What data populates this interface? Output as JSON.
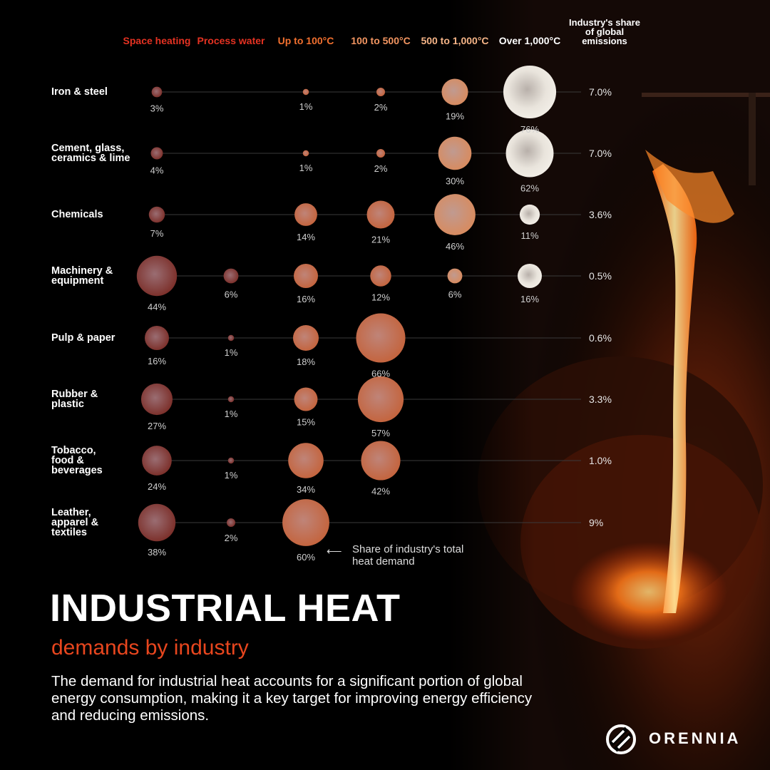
{
  "chart_data": {
    "type": "bubble-matrix",
    "title": "INDUSTRIAL HEAT",
    "subtitle": "demands by industry",
    "description": "The demand for industrial heat accounts for a significant portion of global energy consumption, making it a key target for improving energy efficiency and reducing emissions.",
    "columns": [
      {
        "key": "space",
        "label": "Space heating",
        "color": "#e53222"
      },
      {
        "key": "process",
        "label": "Process water",
        "color": "#e53222"
      },
      {
        "key": "up100",
        "label": "Up to 100°C",
        "color": "#f2702f"
      },
      {
        "key": "100to500",
        "label": "100 to 500°C",
        "color": "#f29561"
      },
      {
        "key": "500to1000",
        "label": "500 to 1,000°C",
        "color": "#f5b487"
      },
      {
        "key": "over1000",
        "label": "Over 1,000°C",
        "color": "#ffffff"
      }
    ],
    "share_column_label": "Industry's share of global emissions",
    "rows": [
      {
        "industry": "Iron & steel",
        "values": [
          3,
          null,
          1,
          2,
          19,
          76
        ],
        "labels": [
          "3%",
          "",
          "1%",
          "2%",
          "19%",
          "76%"
        ],
        "emissions_share": "7.0%"
      },
      {
        "industry": "Cement, glass, ceramics & lime",
        "values": [
          4,
          null,
          1,
          2,
          30,
          62
        ],
        "labels": [
          "4%",
          "",
          "1%",
          "2%",
          "30%",
          "62%"
        ],
        "emissions_share": "7.0%"
      },
      {
        "industry": "Chemicals",
        "values": [
          7,
          null,
          14,
          21,
          46,
          11
        ],
        "labels": [
          "7%",
          "",
          "14%",
          "21%",
          "46%",
          "11%"
        ],
        "emissions_share": "3.6%"
      },
      {
        "industry": "Machinery & equipment",
        "values": [
          44,
          6,
          16,
          12,
          6,
          16
        ],
        "labels": [
          "44%",
          "6%",
          "16%",
          "12%",
          "6%",
          "16%"
        ],
        "emissions_share": "0.5%"
      },
      {
        "industry": "Pulp & paper",
        "values": [
          16,
          1,
          18,
          66,
          null,
          null
        ],
        "labels": [
          "16%",
          "1%",
          "18%",
          "66%",
          "",
          ""
        ],
        "emissions_share": "0.6%"
      },
      {
        "industry": "Rubber & plastic",
        "values": [
          27,
          1,
          15,
          57,
          null,
          null
        ],
        "labels": [
          "27%",
          "1%",
          "15%",
          "57%",
          "",
          ""
        ],
        "emissions_share": "3.3%"
      },
      {
        "industry": "Tobacco, food & beverages",
        "values": [
          24,
          1,
          34,
          42,
          null,
          null
        ],
        "labels": [
          "24%",
          "1%",
          "34%",
          "42%",
          "",
          ""
        ],
        "emissions_share": "1.0%"
      },
      {
        "industry": "Leather, apparel & textiles",
        "values": [
          38,
          2,
          60,
          null,
          null,
          null
        ],
        "labels": [
          "38%",
          "2%",
          "60%",
          "",
          "",
          ""
        ],
        "emissions_share": "9%"
      }
    ],
    "annotation": "Share of industry's total heat demand",
    "annotation_arrow": "⟵"
  },
  "brand": {
    "name": "ORENNIA",
    "logo_icon": "orennia-logo-icon"
  },
  "colors": {
    "background": "#000000",
    "accent_red": "#e8461e",
    "molten": "#ff7a1a"
  }
}
